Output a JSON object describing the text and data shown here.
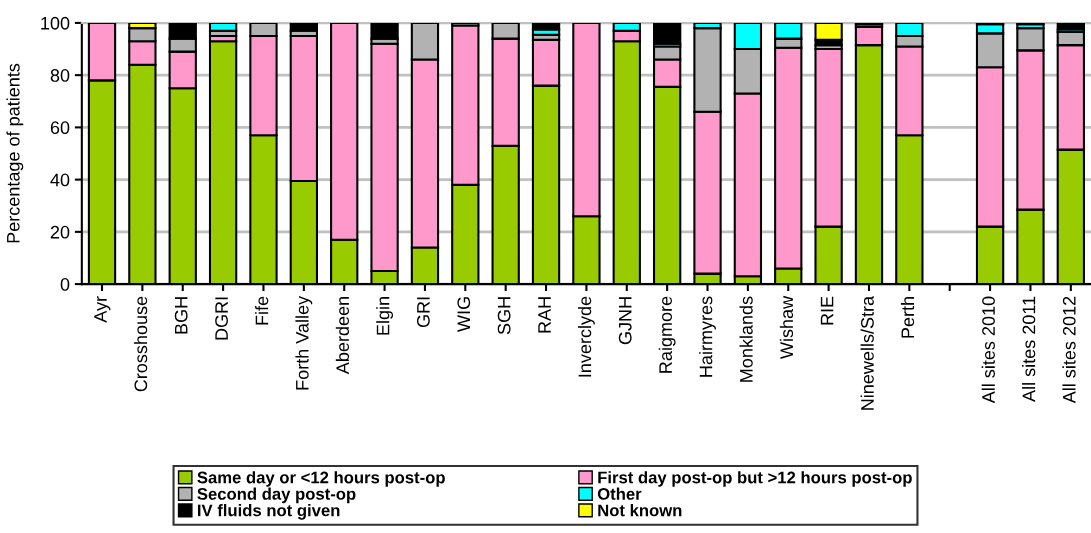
{
  "chart_data": {
    "type": "bar",
    "stacked": true,
    "ylabel": "Percentage of patients",
    "categories": [
      "Ayr",
      "Crosshouse",
      "BGH",
      "DGRI",
      "Fife",
      "Forth Valley",
      "Aberdeen",
      "Elgin",
      "GRI",
      "WIG",
      "SGH",
      "RAH",
      "Inverclyde",
      "GJNH",
      "Raigmore",
      "Hairmyres",
      "Monklands",
      "Wishaw",
      "RIE",
      "Ninewells/Stra",
      "Perth",
      null,
      "All sites 2010",
      "All sites 2011",
      "All sites 2012"
    ],
    "series": [
      {
        "name": "Same day or <12 hours post-op",
        "color": "#99cc00",
        "values": [
          78,
          84,
          75,
          93,
          57,
          39.5,
          17,
          5,
          14,
          38,
          53,
          76,
          26,
          93,
          75.5,
          4,
          3,
          6,
          22,
          91.5,
          57,
          null,
          22,
          28.5,
          51.5
        ]
      },
      {
        "name": "First day post-op but >12 hours post-op",
        "color": "#ff99cc",
        "values": [
          22,
          9,
          14,
          2,
          38,
          55.5,
          83,
          87,
          72,
          61,
          41,
          17.5,
          74,
          4,
          10.5,
          62,
          70,
          84.5,
          68,
          7,
          34,
          null,
          61,
          61,
          40
        ]
      },
      {
        "name": "Second day post-op",
        "color": "#b2b2b2",
        "values": [
          0,
          5,
          5,
          2,
          5,
          2,
          0,
          2,
          14,
          1,
          6,
          2,
          0,
          0,
          5,
          32,
          17,
          3.5,
          1.5,
          1,
          4,
          null,
          13,
          8.5,
          5
        ]
      },
      {
        "name": "Other",
        "color": "#00ffff",
        "values": [
          0,
          0,
          0,
          3,
          0,
          0,
          0,
          0,
          0,
          0,
          0,
          2,
          0,
          3,
          1,
          2,
          10,
          6,
          0,
          0,
          5,
          null,
          3.5,
          1.5,
          1
        ]
      },
      {
        "name": "IV fluids not given",
        "color": "#000000",
        "values": [
          0,
          0,
          6,
          0,
          0,
          3,
          0,
          6,
          0,
          0,
          0,
          2.5,
          0,
          0,
          8,
          0,
          0,
          0,
          2,
          0.5,
          0,
          null,
          0.5,
          0.5,
          2.5
        ]
      },
      {
        "name": "Not known",
        "color": "#ffff00",
        "values": [
          0,
          2,
          0,
          0,
          0,
          0,
          0,
          0,
          0,
          0,
          0,
          0,
          0,
          0,
          0,
          0,
          0,
          0,
          6.5,
          0,
          0,
          null,
          0,
          0,
          0
        ]
      }
    ],
    "ylim": [
      0,
      100
    ],
    "yticks": [
      0,
      20,
      40,
      60,
      80,
      100
    ],
    "grid": "y",
    "legend": "bottom"
  }
}
